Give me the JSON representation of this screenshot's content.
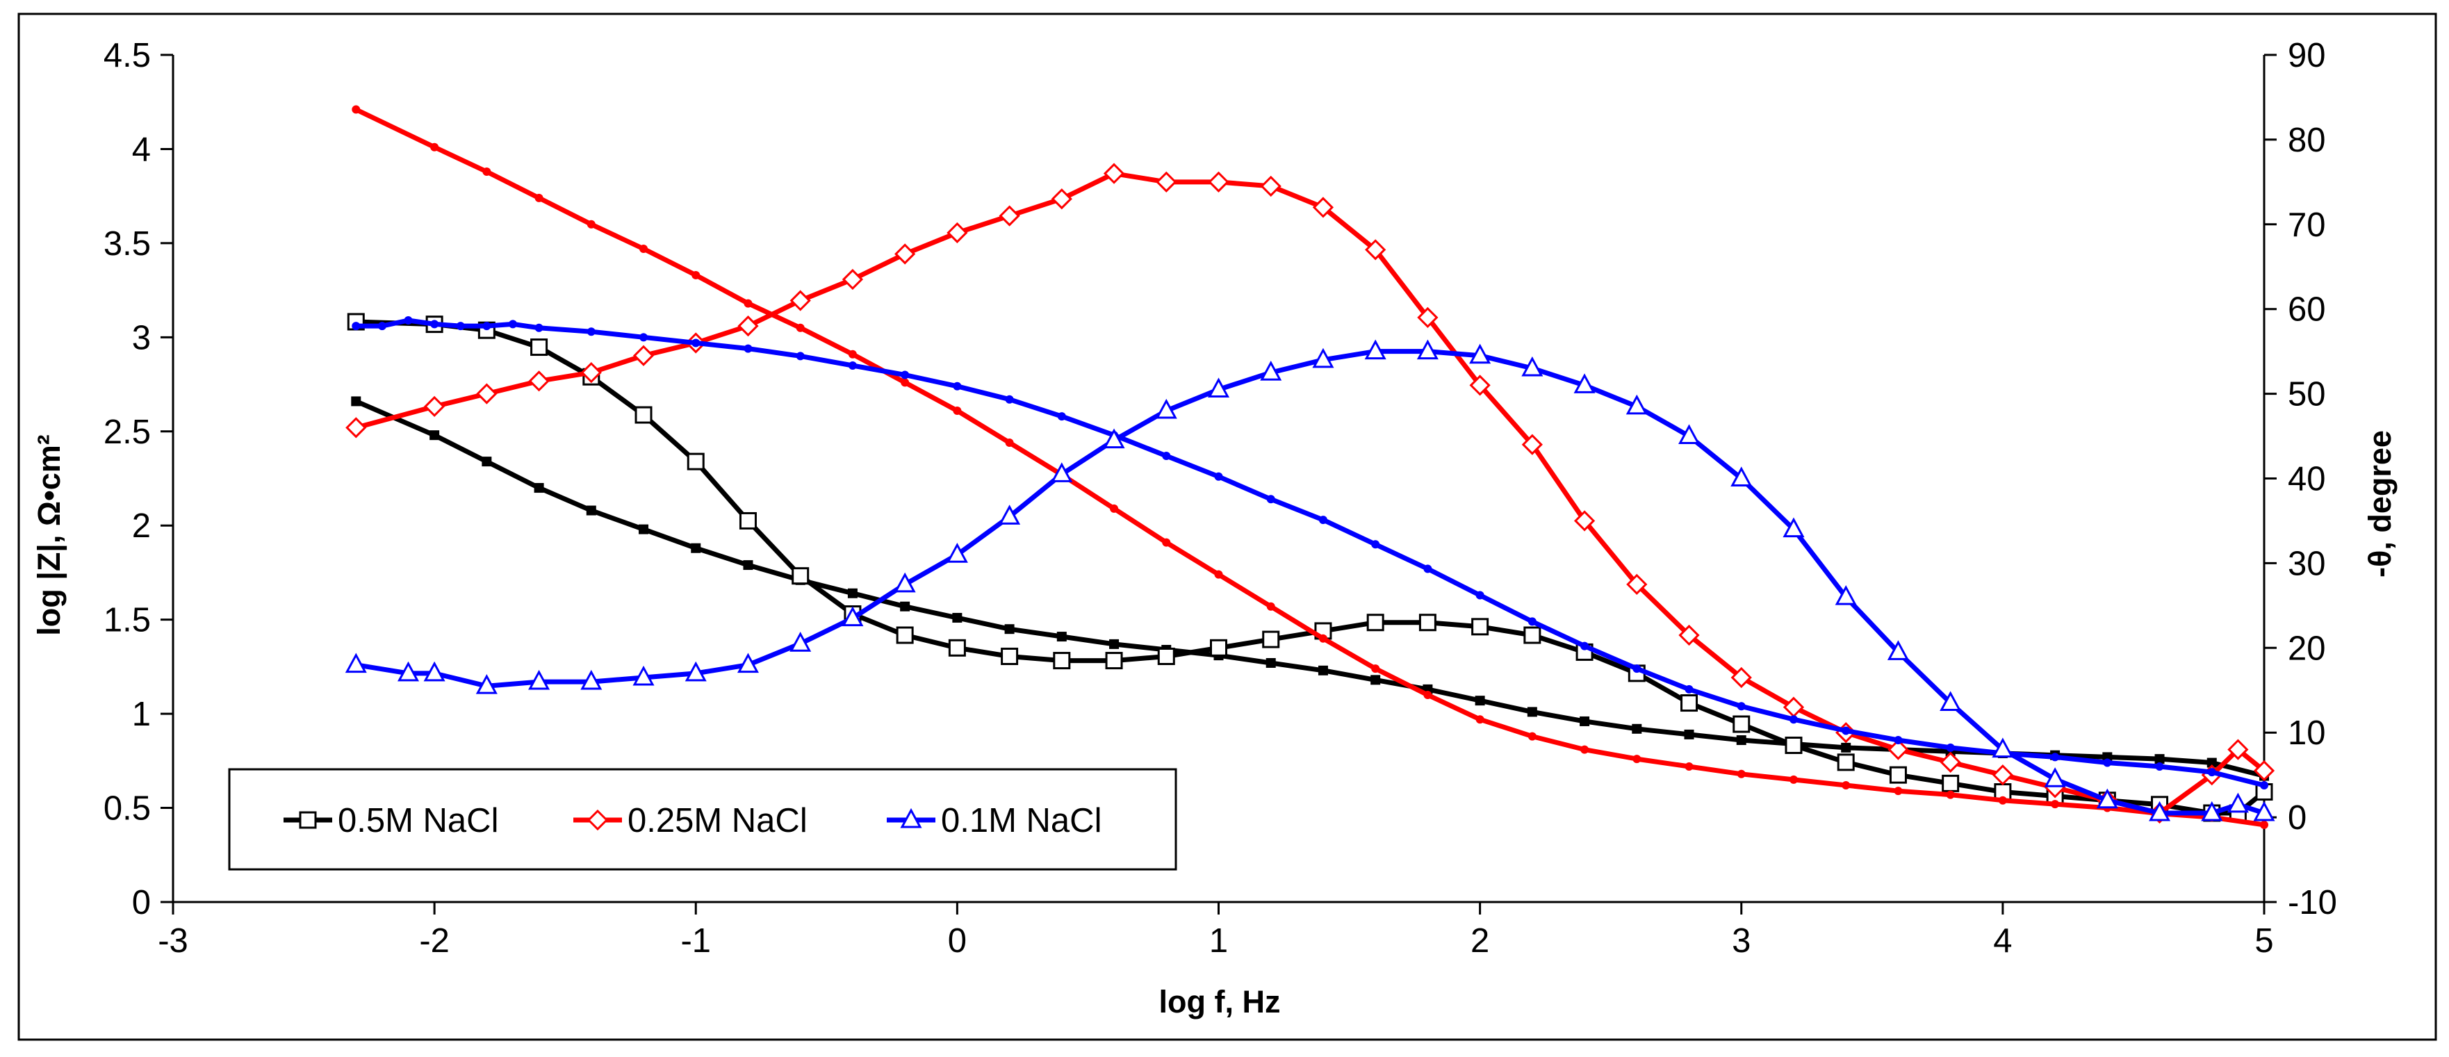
{
  "chart_data": {
    "type": "line",
    "title": "",
    "xlabel": "log f, Hz",
    "ylabel": "log |Z|, Ω•cm²",
    "y2label": "-θ, degree",
    "xlim": [
      -3,
      5
    ],
    "ylim": [
      0,
      4.5
    ],
    "y2lim": [
      -10,
      90
    ],
    "xticks": [
      "-3",
      "-2",
      "-1",
      "0",
      "1",
      "2",
      "3",
      "4",
      "5"
    ],
    "yticks": [
      "0",
      "0.5",
      "1",
      "1.5",
      "2",
      "2.5",
      "3",
      "3.5",
      "4",
      "4.5"
    ],
    "y2ticks": [
      "-10",
      "0",
      "10",
      "20",
      "30",
      "40",
      "50",
      "60",
      "70",
      "80",
      "90"
    ],
    "grid": false,
    "legend": {
      "position": "bottom-left",
      "entries": [
        {
          "label": "0.5M NaCl",
          "color": "#000000",
          "marker": "square"
        },
        {
          "label": "0.25M NaCl",
          "color": "#ff0000",
          "marker": "diamond"
        },
        {
          "label": "0.1M NaCl",
          "color": "#0000ff",
          "marker": "triangle"
        }
      ]
    },
    "series": [
      {
        "name": "0.5M NaCl",
        "color": "#000000",
        "impedance": {
          "axis": "left",
          "x": [
            -2.3,
            -2.0,
            -1.8,
            -1.6,
            -1.4,
            -1.2,
            -1.0,
            -0.8,
            -0.6,
            -0.4,
            -0.2,
            0.0,
            0.2,
            0.4,
            0.6,
            0.8,
            1.0,
            1.2,
            1.4,
            1.6,
            1.8,
            2.0,
            2.2,
            2.4,
            2.6,
            2.8,
            3.0,
            3.2,
            3.4,
            3.6,
            3.8,
            4.0,
            4.2,
            4.4,
            4.6,
            4.8,
            5.0
          ],
          "y": [
            2.66,
            2.48,
            2.34,
            2.2,
            2.08,
            1.98,
            1.88,
            1.79,
            1.71,
            1.64,
            1.57,
            1.51,
            1.45,
            1.41,
            1.37,
            1.34,
            1.31,
            1.27,
            1.23,
            1.18,
            1.13,
            1.07,
            1.01,
            0.96,
            0.92,
            0.89,
            0.86,
            0.84,
            0.82,
            0.81,
            0.8,
            0.79,
            0.78,
            0.77,
            0.76,
            0.74,
            0.67
          ]
        },
        "phase": {
          "axis": "right",
          "x": [
            -2.3,
            -2.0,
            -1.8,
            -1.6,
            -1.4,
            -1.2,
            -1.0,
            -0.8,
            -0.6,
            -0.4,
            -0.2,
            0.0,
            0.2,
            0.4,
            0.6,
            0.8,
            1.0,
            1.2,
            1.4,
            1.6,
            1.8,
            2.0,
            2.2,
            2.4,
            2.6,
            2.8,
            3.0,
            3.2,
            3.4,
            3.6,
            3.8,
            4.0,
            4.2,
            4.4,
            4.6,
            4.8,
            4.9,
            5.0
          ],
          "y": [
            58.5,
            58.2,
            57.5,
            55.5,
            52.0,
            47.5,
            42.0,
            35.0,
            28.5,
            24.0,
            21.5,
            20.0,
            19.0,
            18.5,
            18.5,
            19.0,
            20.0,
            21.0,
            22.0,
            23.0,
            23.0,
            22.5,
            21.5,
            19.5,
            17.0,
            13.5,
            11.0,
            8.5,
            6.5,
            5.0,
            4.0,
            3.0,
            2.5,
            2.0,
            1.5,
            0.5,
            0.5,
            3.0
          ]
        }
      },
      {
        "name": "0.25M NaCl",
        "color": "#ff0000",
        "impedance": {
          "axis": "left",
          "x": [
            -2.3,
            -2.0,
            -1.8,
            -1.6,
            -1.4,
            -1.2,
            -1.0,
            -0.8,
            -0.6,
            -0.4,
            -0.2,
            0.0,
            0.2,
            0.4,
            0.6,
            0.8,
            1.0,
            1.2,
            1.4,
            1.6,
            1.8,
            2.0,
            2.2,
            2.4,
            2.6,
            2.8,
            3.0,
            3.2,
            3.4,
            3.6,
            3.8,
            4.0,
            4.2,
            4.4,
            4.6,
            4.8,
            5.0
          ],
          "y": [
            4.21,
            4.01,
            3.88,
            3.74,
            3.6,
            3.47,
            3.33,
            3.18,
            3.05,
            2.91,
            2.76,
            2.61,
            2.44,
            2.27,
            2.09,
            1.91,
            1.74,
            1.57,
            1.4,
            1.24,
            1.1,
            0.97,
            0.88,
            0.81,
            0.76,
            0.72,
            0.68,
            0.65,
            0.62,
            0.59,
            0.57,
            0.54,
            0.52,
            0.5,
            0.47,
            0.45,
            0.41
          ]
        },
        "phase": {
          "axis": "right",
          "x": [
            -2.3,
            -2.0,
            -1.8,
            -1.6,
            -1.4,
            -1.2,
            -1.0,
            -0.8,
            -0.6,
            -0.4,
            -0.2,
            0.0,
            0.2,
            0.4,
            0.6,
            0.8,
            1.0,
            1.2,
            1.4,
            1.6,
            1.8,
            2.0,
            2.2,
            2.4,
            2.6,
            2.8,
            3.0,
            3.2,
            3.4,
            3.6,
            3.8,
            4.0,
            4.2,
            4.4,
            4.6,
            4.8,
            4.9,
            5.0
          ],
          "y": [
            46.0,
            48.5,
            50.0,
            51.5,
            52.5,
            54.5,
            56.0,
            58.0,
            61.0,
            63.5,
            66.5,
            69.0,
            71.0,
            73.0,
            76.0,
            75.0,
            75.0,
            74.5,
            72.0,
            67.0,
            59.0,
            51.0,
            44.0,
            35.0,
            27.5,
            21.5,
            16.5,
            13.0,
            10.0,
            8.0,
            6.5,
            5.0,
            3.5,
            2.0,
            0.5,
            5.0,
            8.0,
            5.5
          ]
        }
      },
      {
        "name": "0.1M NaCl",
        "color": "#0000ff",
        "impedance": {
          "axis": "left",
          "x": [
            -2.3,
            -2.2,
            -2.1,
            -2.0,
            -1.9,
            -1.8,
            -1.7,
            -1.6,
            -1.4,
            -1.2,
            -1.0,
            -0.8,
            -0.6,
            -0.4,
            -0.2,
            0.0,
            0.2,
            0.4,
            0.6,
            0.8,
            1.0,
            1.2,
            1.4,
            1.6,
            1.8,
            2.0,
            2.2,
            2.4,
            2.6,
            2.8,
            3.0,
            3.2,
            3.4,
            3.6,
            3.8,
            4.0,
            4.2,
            4.4,
            4.6,
            4.8,
            5.0
          ],
          "y": [
            3.06,
            3.06,
            3.09,
            3.07,
            3.06,
            3.06,
            3.07,
            3.05,
            3.03,
            3.0,
            2.97,
            2.94,
            2.9,
            2.85,
            2.8,
            2.74,
            2.67,
            2.58,
            2.48,
            2.37,
            2.26,
            2.14,
            2.03,
            1.9,
            1.77,
            1.63,
            1.49,
            1.36,
            1.24,
            1.13,
            1.04,
            0.97,
            0.91,
            0.86,
            0.82,
            0.79,
            0.77,
            0.74,
            0.72,
            0.69,
            0.62
          ]
        },
        "phase": {
          "axis": "right",
          "x": [
            -2.3,
            -2.1,
            -2.0,
            -1.8,
            -1.6,
            -1.4,
            -1.2,
            -1.0,
            -0.8,
            -0.6,
            -0.4,
            -0.2,
            0.0,
            0.2,
            0.4,
            0.6,
            0.8,
            1.0,
            1.2,
            1.4,
            1.6,
            1.8,
            2.0,
            2.2,
            2.4,
            2.6,
            2.8,
            3.0,
            3.2,
            3.4,
            3.6,
            3.8,
            4.0,
            4.2,
            4.4,
            4.6,
            4.8,
            4.9,
            5.0
          ],
          "y": [
            18.0,
            17.0,
            17.0,
            15.5,
            16.0,
            16.0,
            16.5,
            17.0,
            18.0,
            20.5,
            23.5,
            27.5,
            31.0,
            35.5,
            40.5,
            44.5,
            48.0,
            50.5,
            52.5,
            54.0,
            55.0,
            55.0,
            54.5,
            53.0,
            51.0,
            48.5,
            45.0,
            40.0,
            34.0,
            26.0,
            19.5,
            13.5,
            8.0,
            4.5,
            2.0,
            0.5,
            0.5,
            1.5,
            0.5
          ]
        }
      }
    ]
  }
}
